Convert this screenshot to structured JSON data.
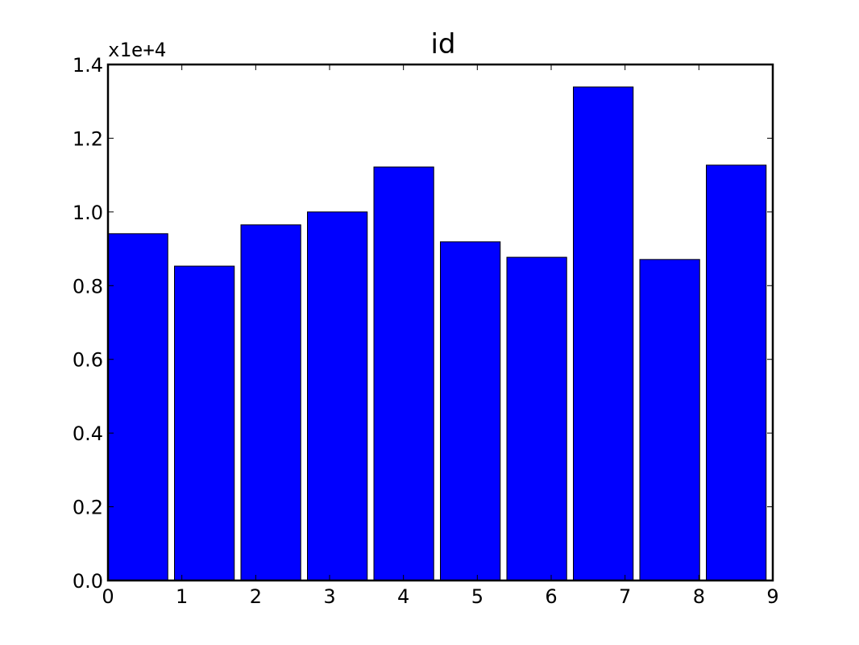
{
  "chart_data": {
    "type": "bar",
    "title": "id",
    "xlabel": "",
    "ylabel": "",
    "offset_label": "x1e+4",
    "x_ticks": [
      0,
      1,
      2,
      3,
      4,
      5,
      6,
      7,
      8,
      9
    ],
    "y_ticks": [
      "0.0",
      "0.2",
      "0.4",
      "0.6",
      "0.8",
      "1.0",
      "1.2",
      "1.4"
    ],
    "xlim": [
      0,
      9
    ],
    "ylim": [
      0,
      14000
    ],
    "bin_starts": [
      0,
      0.9,
      1.8,
      2.7,
      3.6,
      4.5,
      5.4,
      6.3,
      7.2,
      8.1
    ],
    "bar_width": 0.81,
    "values": [
      9410,
      8530,
      9650,
      10000,
      11220,
      9190,
      8770,
      13390,
      8710,
      11270
    ],
    "grid": false,
    "colors": {
      "bar": "#0000ff",
      "edge": "#000000"
    }
  }
}
